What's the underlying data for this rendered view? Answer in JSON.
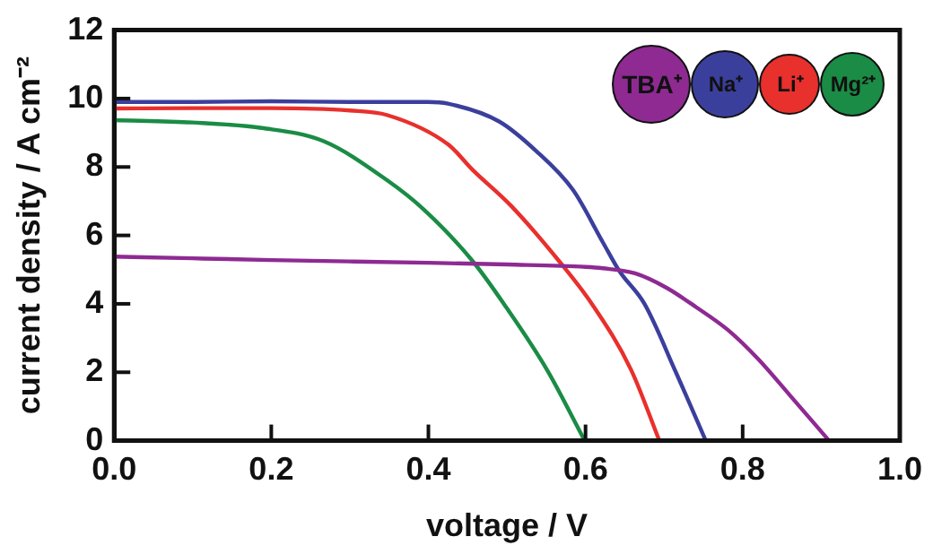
{
  "chart_data": {
    "type": "line",
    "xlabel": "voltage / V",
    "ylabel": "current density / A cm⁻²",
    "xlim": [
      0,
      1
    ],
    "xticks": [
      {
        "value": 0,
        "label": "0.0"
      },
      0.2,
      0.4,
      0.6,
      0.8,
      {
        "value": 1,
        "label": "1.0"
      }
    ],
    "ylim": [
      0,
      12
    ],
    "yticks": [
      0,
      2,
      4,
      6,
      8,
      10,
      12
    ],
    "grid": false,
    "legend": "top right",
    "marker": "none",
    "line_style": "solid",
    "series": [
      {
        "name": "TBA⁺",
        "color": "#8e2a92",
        "x": [
          0,
          0.1,
          0.2,
          0.3,
          0.4,
          0.5,
          0.6,
          0.622,
          0.663,
          0.703,
          0.741,
          0.781,
          0.82,
          0.86,
          0.91
        ],
        "values": [
          5.38,
          5.33,
          5.28,
          5.24,
          5.2,
          5.15,
          5.08,
          5.04,
          4.89,
          4.47,
          3.9,
          3.24,
          2.38,
          1.33,
          0
        ]
      },
      {
        "name": "Na⁺",
        "color": "#3b3f9c",
        "x": [
          0,
          0.1,
          0.2,
          0.3,
          0.4,
          0.425,
          0.49,
          0.537,
          0.584,
          0.622,
          0.643,
          0.675,
          0.715,
          0.753
        ],
        "values": [
          9.9,
          9.9,
          9.92,
          9.9,
          9.9,
          9.85,
          9.33,
          8.47,
          7.33,
          5.8,
          4.96,
          4.0,
          2.0,
          0
        ]
      },
      {
        "name": "Li⁺",
        "color": "#e8302c",
        "x": [
          0,
          0.1,
          0.2,
          0.3,
          0.347,
          0.425,
          0.457,
          0.505,
          0.567,
          0.608,
          0.658,
          0.694
        ],
        "values": [
          9.71,
          9.72,
          9.72,
          9.65,
          9.52,
          8.66,
          7.9,
          6.87,
          5.23,
          4.0,
          2.07,
          0
        ]
      },
      {
        "name": "Mg²⁺",
        "color": "#1a8c45",
        "x": [
          0,
          0.1,
          0.188,
          0.266,
          0.347,
          0.394,
          0.457,
          0.496,
          0.551,
          0.599
        ],
        "values": [
          9.37,
          9.3,
          9.14,
          8.76,
          7.62,
          6.76,
          5.23,
          4.0,
          2.07,
          0
        ]
      }
    ]
  }
}
